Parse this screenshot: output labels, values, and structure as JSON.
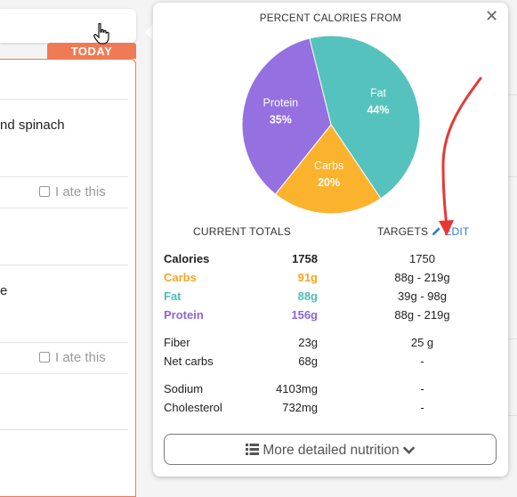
{
  "background": {
    "today_badge": "TODAY",
    "meal_item_1": "nd spinach",
    "meal_item_2": "e",
    "ate_label": "I ate this"
  },
  "popover": {
    "title": "PERCENT CALORIES FROM",
    "current_totals_head": "CURRENT TOTALS",
    "targets_head": "TARGETS",
    "edit_label": "EDIT",
    "more_button_label": "More detailed nutrition"
  },
  "chart_data": {
    "type": "pie",
    "title": "PERCENT CALORIES FROM",
    "slices": [
      {
        "name": "Fat",
        "value": 44,
        "label": "44%",
        "color": "#55c2bd"
      },
      {
        "name": "Carbs",
        "value": 20,
        "label": "20%",
        "color": "#fbb32e"
      },
      {
        "name": "Protein",
        "value": 35,
        "label": "35%",
        "color": "#9470e1"
      }
    ]
  },
  "nutrients": [
    {
      "label": "Calories",
      "total": "1758",
      "target": "1750",
      "color": "#222222",
      "bold": true
    },
    {
      "label": "Carbs",
      "total": "91g",
      "target": "88g - 219g",
      "color": "#f5a623",
      "bold": true
    },
    {
      "label": "Fat",
      "total": "88g",
      "target": "39g - 98g",
      "color": "#4dbdb7",
      "bold": true
    },
    {
      "label": "Protein",
      "total": "156g",
      "target": "88g - 219g",
      "color": "#8f64d8",
      "bold": true
    },
    {
      "label": "Fiber",
      "total": "23g",
      "target": "25 g",
      "color": "#222222",
      "bold": false
    },
    {
      "label": "Net carbs",
      "total": "68g",
      "target": "-",
      "color": "#222222",
      "bold": false
    },
    {
      "label": "Sodium",
      "total": "4103mg",
      "target": "-",
      "color": "#222222",
      "bold": false
    },
    {
      "label": "Cholesterol",
      "total": "732mg",
      "target": "-",
      "color": "#222222",
      "bold": false
    }
  ],
  "colors": {
    "accent_today": "#ef7a55",
    "link": "#2b78d6",
    "annotation_arrow": "#e53935"
  }
}
